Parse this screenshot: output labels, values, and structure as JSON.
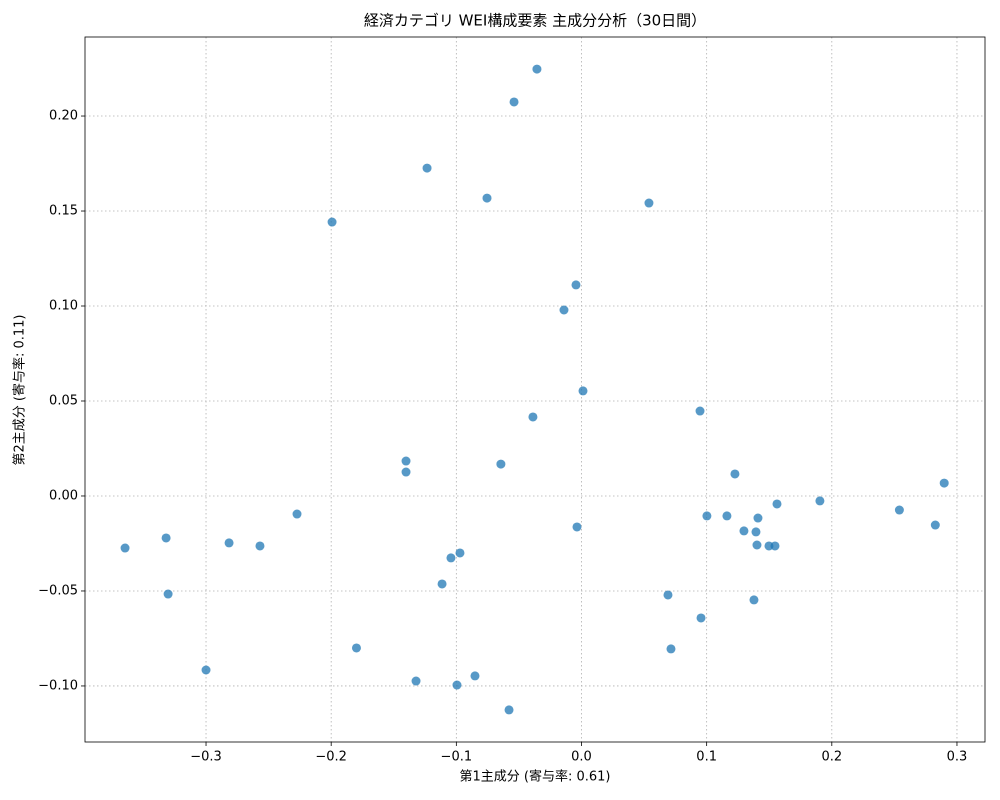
{
  "chart_data": {
    "type": "scatter",
    "title": "経済カテゴリ WEI構成要素 主成分分析（30日間）",
    "x_label": "第1主成分 (寄与率: 0.61)",
    "y_label": "第2主成分 (寄与率: 0.11)",
    "color": "#1f77b4",
    "grid": true,
    "xlim": [
      -0.3967,
      0.3224
    ],
    "ylim": [
      -0.1295,
      0.2416
    ],
    "xticks": [
      {
        "value": -0.3,
        "label": "−0.3"
      },
      {
        "value": -0.2,
        "label": "−0.2"
      },
      {
        "value": -0.1,
        "label": "−0.1"
      },
      {
        "value": 0,
        "label": "0.0"
      },
      0.1,
      0.2,
      0.3
    ],
    "yticks": [
      {
        "value": -0.1,
        "label": "−0.10"
      },
      {
        "value": -0.05,
        "label": "−0.05"
      },
      {
        "value": 0,
        "label": "0.00"
      },
      0.05,
      {
        "value": 0.1,
        "label": "0.10"
      },
      0.15,
      {
        "value": 0.2,
        "label": "0.20"
      }
    ],
    "x": [
      -0.0356,
      -0.0539,
      -0.1234,
      -0.0755,
      0.0539,
      -0.1993,
      -0.0044,
      -0.014,
      0.0012,
      0.0947,
      -0.0388,
      -0.1402,
      -0.1402,
      -0.0644,
      0.1226,
      0.2898,
      0.1905,
      0.1562,
      0.254,
      -0.2273,
      0.1002,
      0.1162,
      0.141,
      0.2827,
      -0.0036,
      0.1298,
      0.1394,
      -0.3319,
      -0.2816,
      -0.3647,
      -0.2569,
      0.1402,
      0.1498,
      0.1546,
      -0.0971,
      -0.1043,
      -0.1114,
      -0.3303,
      0.0691,
      0.1378,
      0.0955,
      -0.1798,
      0.0715,
      -0.3,
      -0.0851,
      -0.1322,
      -0.0995,
      -0.0579
    ],
    "values": [
      0.2247,
      0.2074,
      0.1726,
      0.1568,
      0.1542,
      0.1442,
      0.1111,
      0.0979,
      0.0553,
      0.0447,
      0.0416,
      0.0184,
      0.0126,
      0.0168,
      0.0116,
      0.0068,
      -0.0026,
      -0.0042,
      -0.0074,
      -0.0095,
      -0.0105,
      -0.0105,
      -0.0116,
      -0.0153,
      -0.0163,
      -0.0184,
      -0.0189,
      -0.0221,
      -0.0247,
      -0.0274,
      -0.0263,
      -0.0258,
      -0.0263,
      -0.0263,
      -0.03,
      -0.0326,
      -0.0463,
      -0.0516,
      -0.0521,
      -0.0547,
      -0.0642,
      -0.08,
      -0.0805,
      -0.0916,
      -0.0947,
      -0.0974,
      -0.0995,
      -0.1126
    ]
  }
}
